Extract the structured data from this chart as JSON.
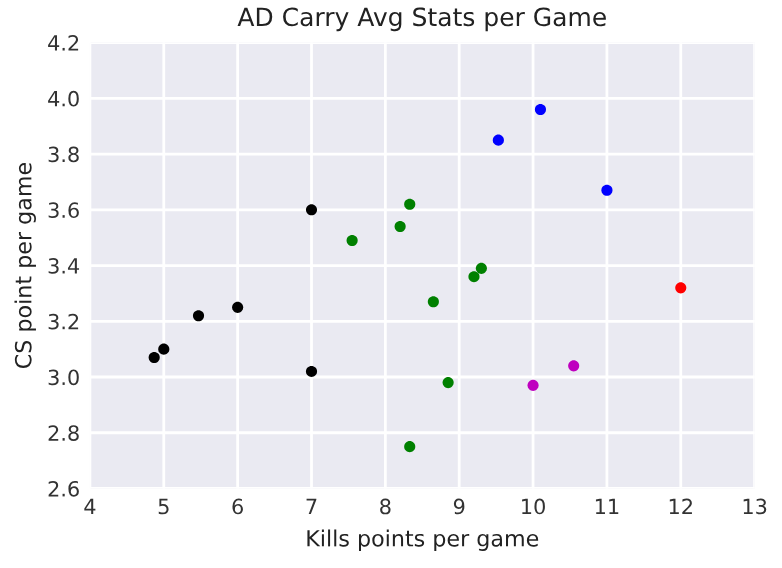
{
  "chart_data": {
    "type": "scatter",
    "title": "AD Carry Avg Stats per Game",
    "xlabel": "Kills points per game",
    "ylabel": "CS point per game",
    "xlim": [
      4,
      13
    ],
    "xticks": [
      4,
      5,
      6,
      7,
      8,
      9,
      10,
      11,
      12,
      13
    ],
    "ylim": [
      2.6,
      4.2
    ],
    "yticks": [
      2.6,
      2.8,
      {
        "value": 3,
        "label": "3.0"
      },
      3.2,
      3.4,
      3.6,
      3.8,
      {
        "value": 4,
        "label": "4.0"
      },
      4.2
    ],
    "grid": true,
    "marker": "circle",
    "series": [
      {
        "color": "#000000",
        "x": [
          4.87,
          5.0,
          5.47,
          6.0,
          7.0,
          7.0
        ],
        "values": [
          3.07,
          3.1,
          3.22,
          3.25,
          3.6,
          3.02
        ]
      },
      {
        "color": "#008000",
        "x": [
          7.55,
          8.2,
          8.33,
          8.65,
          8.85,
          9.2,
          9.3,
          8.33
        ],
        "values": [
          3.49,
          3.54,
          3.62,
          3.27,
          2.98,
          3.36,
          3.39,
          2.75
        ]
      },
      {
        "color": "#0000ff",
        "x": [
          9.53,
          10.1,
          11.0
        ],
        "values": [
          3.85,
          3.96,
          3.67
        ]
      },
      {
        "color": "#bf00bf",
        "x": [
          10.0,
          10.55
        ],
        "values": [
          2.97,
          3.04
        ]
      },
      {
        "color": "#ff0000",
        "x": [
          12.0
        ],
        "values": [
          3.32
        ]
      }
    ]
  }
}
